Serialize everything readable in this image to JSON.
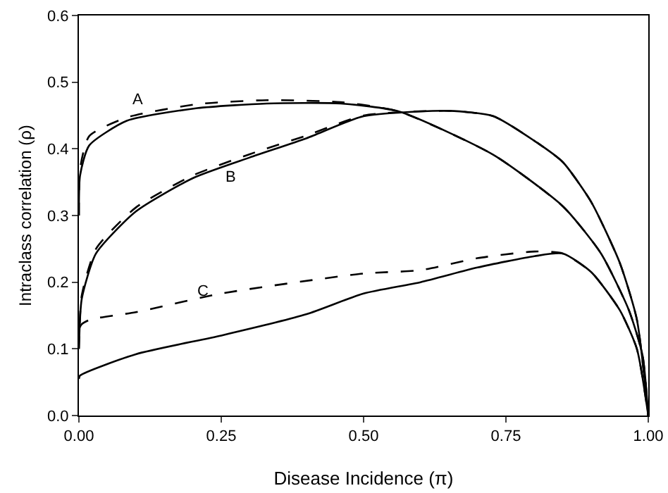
{
  "chart_data": {
    "type": "line",
    "xlabel": "Disease Incidence (π)",
    "ylabel": "Intraclass correlation (ρ)",
    "xlim": [
      0,
      1
    ],
    "ylim": [
      0,
      0.6
    ],
    "xticks": [
      {
        "value": 0,
        "label": "0.00"
      },
      {
        "value": 0.25,
        "label": "0.25"
      },
      {
        "value": 0.5,
        "label": "0.50"
      },
      {
        "value": 0.75,
        "label": "0.75"
      },
      {
        "value": 1,
        "label": "1.00"
      }
    ],
    "yticks": [
      {
        "value": 0,
        "label": "0.0"
      },
      {
        "value": 0.1,
        "label": "0.1"
      },
      {
        "value": 0.2,
        "label": "0.2"
      },
      {
        "value": 0.3,
        "label": "0.3"
      },
      {
        "value": 0.4,
        "label": "0.4"
      },
      {
        "value": 0.5,
        "label": "0.5"
      },
      {
        "value": 0.6,
        "label": "0.6"
      }
    ],
    "grid": false,
    "marker": "none",
    "series": [
      {
        "color": "#000000",
        "line_style": "dashed",
        "x": [
          0,
          0.002,
          0.018,
          0.084,
          0.208,
          0.33,
          0.46,
          0.562,
          0.728,
          0.851,
          0.917,
          0.966,
          0.99,
          1
        ],
        "values": [
          0.3,
          0.37,
          0.419,
          0.447,
          0.467,
          0.473,
          0.47,
          0.456,
          0.391,
          0.313,
          0.243,
          0.158,
          0.09,
          0
        ]
      },
      {
        "color": "#000000",
        "line_style": "solid",
        "x": [
          0,
          0.002,
          0.018,
          0.084,
          0.208,
          0.33,
          0.46,
          0.562,
          0.728,
          0.851,
          0.917,
          0.966,
          0.99,
          1
        ],
        "values": [
          0.3,
          0.36,
          0.405,
          0.442,
          0.461,
          0.468,
          0.468,
          0.456,
          0.391,
          0.313,
          0.243,
          0.158,
          0.09,
          0
        ]
      },
      {
        "color": "#000000",
        "line_style": "dashed",
        "x": [
          0,
          0.005,
          0.03,
          0.1,
          0.2,
          0.3,
          0.4,
          0.5,
          0.65,
          0.728,
          0.8,
          0.85,
          0.9,
          0.95,
          0.98,
          1
        ],
        "values": [
          0.1,
          0.18,
          0.25,
          0.312,
          0.36,
          0.392,
          0.42,
          0.45,
          0.457,
          0.449,
          0.412,
          0.38,
          0.32,
          0.229,
          0.144,
          0
        ]
      },
      {
        "color": "#000000",
        "line_style": "solid",
        "x": [
          0,
          0.005,
          0.03,
          0.1,
          0.2,
          0.3,
          0.4,
          0.5,
          0.65,
          0.728,
          0.8,
          0.85,
          0.9,
          0.95,
          0.98,
          1
        ],
        "values": [
          0.1,
          0.175,
          0.243,
          0.306,
          0.356,
          0.387,
          0.416,
          0.449,
          0.457,
          0.449,
          0.412,
          0.38,
          0.32,
          0.229,
          0.144,
          0
        ]
      },
      {
        "color": "#000000",
        "line_style": "dashed",
        "x": [
          0,
          0.005,
          0.02,
          0.1,
          0.25,
          0.5,
          0.6,
          0.7,
          0.8,
          0.85,
          0.9,
          0.95,
          0.98,
          1
        ],
        "values": [
          0.13,
          0.137,
          0.144,
          0.155,
          0.183,
          0.213,
          0.218,
          0.236,
          0.246,
          0.243,
          0.215,
          0.158,
          0.1,
          0
        ]
      },
      {
        "color": "#000000",
        "line_style": "solid",
        "x": [
          0,
          0.002,
          0.1,
          0.25,
          0.4,
          0.5,
          0.6,
          0.7,
          0.8,
          0.85,
          0.9,
          0.95,
          0.98,
          1
        ],
        "values": [
          0.055,
          0.06,
          0.092,
          0.12,
          0.152,
          0.183,
          0.2,
          0.222,
          0.239,
          0.243,
          0.215,
          0.158,
          0.1,
          0
        ]
      }
    ],
    "annotations": [
      "A",
      "B",
      "C"
    ]
  }
}
